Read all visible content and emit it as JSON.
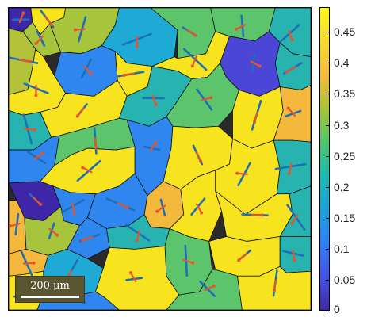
{
  "map": {
    "scalebar_label": "200 μm"
  },
  "colorbar": {
    "colors": [
      "#3e26a8",
      "#4453e8",
      "#2f80fa",
      "#1aa3d9",
      "#19bcb2",
      "#50c56c",
      "#a8c434",
      "#f5bb3a",
      "#f8d830",
      "#f9fa14"
    ],
    "ticks": [
      "0",
      "0.05",
      "0.1",
      "0.15",
      "0.2",
      "0.25",
      "0.3",
      "0.35",
      "0.4",
      "0.45"
    ],
    "tick_values": [
      0,
      0.05,
      0.1,
      0.15,
      0.2,
      0.25,
      0.3,
      0.35,
      0.4,
      0.45
    ],
    "range": [
      0,
      0.49
    ]
  },
  "marker_colors": {
    "blue_segment": "#1e6fb8",
    "red_arrow": "#e8542a"
  }
}
